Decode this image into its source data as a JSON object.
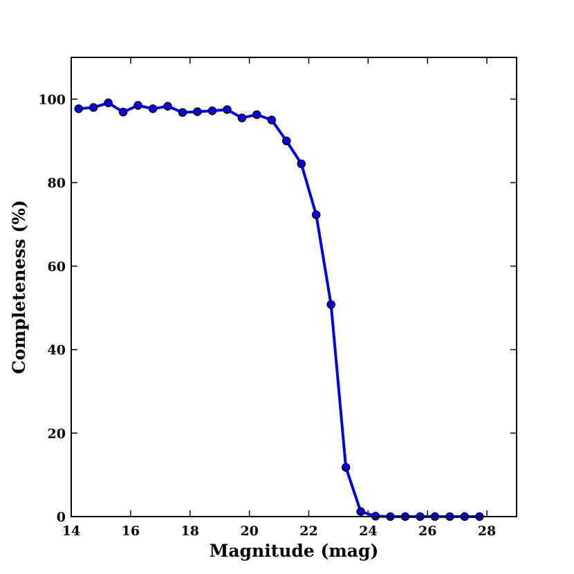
{
  "chart_data": {
    "type": "line",
    "title": "",
    "xlabel": "Magnitude (mag)",
    "ylabel": "Completeness (%)",
    "xlim": [
      14,
      29
    ],
    "ylim": [
      0,
      110
    ],
    "xticks": [
      14,
      16,
      18,
      20,
      22,
      24,
      26,
      28
    ],
    "yticks": [
      0,
      20,
      40,
      60,
      80,
      100
    ],
    "grid": false,
    "series": [
      {
        "name": "completeness",
        "color": "#0000ee",
        "marker_color": "#0000ee",
        "x": [
          14.25,
          14.75,
          15.25,
          15.75,
          16.25,
          16.75,
          17.25,
          17.75,
          18.25,
          18.75,
          19.25,
          19.75,
          20.25,
          20.75,
          21.25,
          21.75,
          22.25,
          22.75,
          23.25,
          23.75,
          24.25,
          24.75,
          25.25,
          25.75,
          26.25,
          26.75,
          27.25,
          27.75
        ],
        "values": [
          97.7,
          98.0,
          99.1,
          96.9,
          98.5,
          97.7,
          98.3,
          96.8,
          97.0,
          97.2,
          97.5,
          95.5,
          96.3,
          95.0,
          90.0,
          84.5,
          72.3,
          50.8,
          11.8,
          1.2,
          0.1,
          0.0,
          0.0,
          0.0,
          0.0,
          0.0,
          0.0,
          0.0
        ]
      }
    ]
  }
}
